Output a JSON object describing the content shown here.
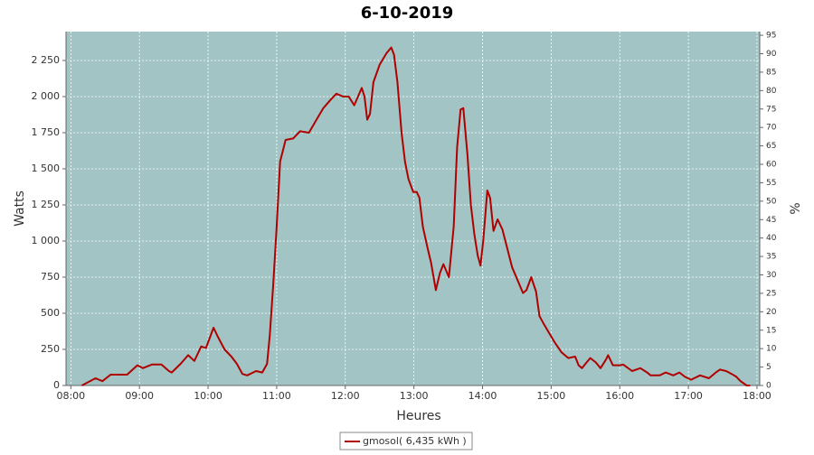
{
  "chart_data": {
    "type": "line",
    "title": "6-10-2019",
    "x_label": "Heures",
    "y_label": "Watts",
    "y2_label": "%",
    "xlim": [
      7.93,
      18.04
    ],
    "xticks": [
      {
        "value": 8,
        "label": "08:00"
      },
      {
        "value": 9,
        "label": "09:00"
      },
      {
        "value": 10,
        "label": "10:00"
      },
      {
        "value": 11,
        "label": "11:00"
      },
      {
        "value": 12,
        "label": "12:00"
      },
      {
        "value": 13,
        "label": "13:00"
      },
      {
        "value": 14,
        "label": "14:00"
      },
      {
        "value": 15,
        "label": "15:00"
      },
      {
        "value": 16,
        "label": "16:00"
      },
      {
        "value": 17,
        "label": "17:00"
      },
      {
        "value": 18,
        "label": "18:00"
      }
    ],
    "ylim": [
      0,
      2450
    ],
    "yticks": [
      0,
      250,
      500,
      750,
      {
        "value": 1000,
        "label": "1 000"
      },
      {
        "value": 1250,
        "label": "1 250"
      },
      {
        "value": 1500,
        "label": "1 500"
      },
      {
        "value": 1750,
        "label": "1 750"
      },
      {
        "value": 2000,
        "label": "2 000"
      },
      {
        "value": 2250,
        "label": "2 250"
      }
    ],
    "y2lim": [
      0,
      96
    ],
    "y2ticks": [
      0,
      5,
      10,
      15,
      20,
      25,
      30,
      35,
      40,
      45,
      50,
      55,
      60,
      65,
      70,
      75,
      80,
      85,
      90,
      95
    ],
    "grid": true,
    "x": [
      8.16,
      8.36,
      8.46,
      8.58,
      8.82,
      8.97,
      9.05,
      9.18,
      9.32,
      9.43,
      9.47,
      9.6,
      9.71,
      9.8,
      9.9,
      9.97,
      10.08,
      10.14,
      10.24,
      10.34,
      10.42,
      10.5,
      10.57,
      10.7,
      10.79,
      10.86,
      10.9,
      10.95,
      11.0,
      11.05,
      11.13,
      11.24,
      11.34,
      11.47,
      11.58,
      11.68,
      11.79,
      11.87,
      11.97,
      12.05,
      12.13,
      12.24,
      12.28,
      12.32,
      12.36,
      12.41,
      12.5,
      12.6,
      12.67,
      12.71,
      12.76,
      12.82,
      12.87,
      12.92,
      12.99,
      13.04,
      13.08,
      13.13,
      13.2,
      13.25,
      13.32,
      13.38,
      13.43,
      13.51,
      13.58,
      13.63,
      13.68,
      13.72,
      13.78,
      13.83,
      13.88,
      13.93,
      13.97,
      14.01,
      14.07,
      14.11,
      14.16,
      14.22,
      14.29,
      14.36,
      14.43,
      14.51,
      14.59,
      14.64,
      14.71,
      14.78,
      14.83,
      14.9,
      14.95,
      15.05,
      15.15,
      15.25,
      15.35,
      15.4,
      15.45,
      15.5,
      15.57,
      15.65,
      15.72,
      15.8,
      15.83,
      15.9,
      16.0,
      16.05,
      16.18,
      16.3,
      16.4,
      16.45,
      16.58,
      16.67,
      16.78,
      16.87,
      16.95,
      17.04,
      17.17,
      17.3,
      17.4,
      17.46,
      17.55,
      17.63,
      17.7,
      17.76,
      17.85,
      17.9
    ],
    "series": [
      {
        "name": "gmosol( 6,435 kWh )",
        "color": "#b00000",
        "values": [
          0,
          50,
          30,
          75,
          75,
          140,
          120,
          145,
          145,
          100,
          90,
          150,
          210,
          170,
          270,
          260,
          400,
          340,
          250,
          200,
          150,
          80,
          70,
          100,
          90,
          150,
          350,
          700,
          1100,
          1550,
          1700,
          1710,
          1760,
          1750,
          1840,
          1920,
          1980,
          2020,
          2000,
          2000,
          1940,
          2060,
          2000,
          1840,
          1880,
          2100,
          2220,
          2300,
          2340,
          2290,
          2100,
          1750,
          1550,
          1430,
          1340,
          1340,
          1300,
          1100,
          950,
          850,
          660,
          780,
          840,
          750,
          1100,
          1650,
          1910,
          1920,
          1600,
          1250,
          1050,
          900,
          830,
          1000,
          1350,
          1300,
          1070,
          1150,
          1080,
          950,
          820,
          730,
          640,
          660,
          750,
          650,
          480,
          420,
          380,
          300,
          230,
          190,
          200,
          140,
          120,
          150,
          190,
          160,
          120,
          180,
          210,
          140,
          140,
          145,
          100,
          120,
          90,
          70,
          70,
          90,
          70,
          90,
          60,
          40,
          70,
          50,
          90,
          110,
          100,
          80,
          60,
          30,
          0,
          0
        ]
      }
    ]
  }
}
